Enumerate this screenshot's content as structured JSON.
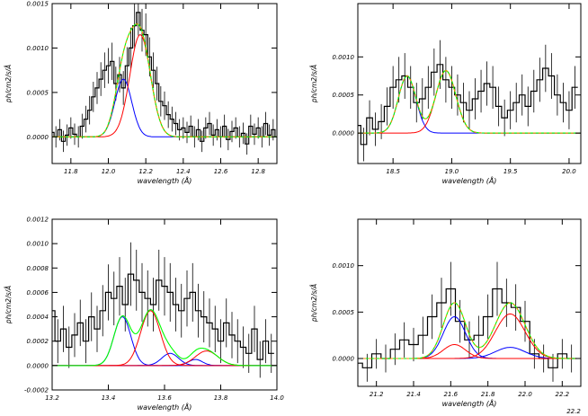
{
  "chart_data": [
    {
      "type": "line",
      "xlabel": "wavelength (Å)",
      "ylabel": "ph/cm2/s/Å",
      "xlim": [
        11.7,
        12.9
      ],
      "ylim": [
        -0.0003,
        0.0015
      ],
      "xticks": [
        11.8,
        12.0,
        12.2,
        12.4,
        12.6,
        12.8
      ],
      "xtick_labels": [
        "11.8",
        "12.0",
        "12.2",
        "12.4",
        "12.6",
        "12.8"
      ],
      "yticks": [
        0.0,
        0.0005,
        0.001,
        0.0015
      ],
      "ytick_labels": [
        "0.0000",
        "0.0005",
        "0.0010",
        "0.0015"
      ],
      "histogram": {
        "x": [
          11.7,
          11.72,
          11.74,
          11.76,
          11.78,
          11.8,
          11.82,
          11.84,
          11.86,
          11.88,
          11.9,
          11.92,
          11.94,
          11.96,
          11.98,
          12.0,
          12.02,
          12.04,
          12.06,
          12.08,
          12.1,
          12.12,
          12.14,
          12.16,
          12.18,
          12.2,
          12.22,
          12.24,
          12.26,
          12.28,
          12.3,
          12.32,
          12.34,
          12.36,
          12.38,
          12.4,
          12.42,
          12.44,
          12.46,
          12.48,
          12.5,
          12.52,
          12.54,
          12.56,
          12.58,
          12.6,
          12.62,
          12.64,
          12.66,
          12.68,
          12.7,
          12.72,
          12.74,
          12.76,
          12.78,
          12.8,
          12.82,
          12.84,
          12.86,
          12.88,
          12.9
        ],
        "y": [
          5e-05,
          0.0,
          8e-05,
          -5e-05,
          2e-05,
          0.0001,
          3e-05,
          0.0,
          0.00012,
          0.0002,
          0.0003,
          0.00045,
          0.00055,
          0.00065,
          0.00075,
          0.0008,
          0.00085,
          0.0006,
          0.0007,
          0.00055,
          0.0008,
          0.001,
          0.00125,
          0.0014,
          0.0012,
          0.00115,
          0.0009,
          0.00075,
          0.0006,
          0.0004,
          0.00035,
          0.00025,
          0.0002,
          0.00015,
          8e-05,
          0.0001,
          5e-05,
          0.00012,
          0.0,
          8e-05,
          -5e-05,
          0.0001,
          0.00015,
          2e-05,
          8e-05,
          0.0,
          0.00012,
          -3e-05,
          6e-05,
          0.0001,
          0.0,
          4e-05,
          -8e-05,
          0.00012,
          3e-05,
          0.0001,
          0.0,
          0.00015,
          2e-05,
          8e-05,
          0.0
        ],
        "err": [
          0.00012,
          0.00012,
          0.00012,
          0.00012,
          0.00012,
          0.00012,
          0.00012,
          0.00012,
          0.00014,
          0.00015,
          0.00016,
          0.00017,
          0.00018,
          0.00019,
          0.0002,
          0.0002,
          0.00021,
          0.00019,
          0.0002,
          0.00019,
          0.00021,
          0.00023,
          0.00025,
          0.00026,
          0.00024,
          0.00024,
          0.00022,
          0.0002,
          0.00019,
          0.00017,
          0.00016,
          0.00015,
          0.00014,
          0.00013,
          0.00012,
          0.00012,
          0.00012,
          0.00012,
          0.00012,
          0.00012,
          0.00012,
          0.00012,
          0.00013,
          0.00012,
          0.00012,
          0.00012,
          0.00013,
          0.00012,
          0.00012,
          0.00012,
          0.00012,
          0.00012,
          0.00012,
          0.00013,
          0.00012,
          0.00012,
          0.00012,
          0.00013,
          0.00012,
          0.00012,
          0.00012
        ]
      },
      "components": [
        {
          "name": "blue",
          "color": "#0000ff",
          "center": 12.08,
          "sigma": 0.045,
          "amp": 0.00065
        },
        {
          "name": "red",
          "color": "#ff0000",
          "center": 12.17,
          "sigma": 0.055,
          "amp": 0.00115
        }
      ],
      "total": {
        "name": "green",
        "color": "#00ff00",
        "includes_red_dash": true
      }
    },
    {
      "type": "line",
      "xlabel": "wavelength (Å)",
      "ylabel": "ph/cm2/s/Å",
      "xlim": [
        18.2,
        20.1
      ],
      "ylim": [
        -0.0004,
        0.0017
      ],
      "xticks": [
        18.5,
        19.0,
        19.5,
        20.0
      ],
      "xtick_labels": [
        "18.5",
        "19.0",
        "19.5",
        "20.0"
      ],
      "yticks": [
        0.0,
        0.0005,
        0.001
      ],
      "ytick_labels": [
        "0.0000",
        "0.0005",
        "0.0010"
      ],
      "histogram": {
        "x": [
          18.2,
          18.25,
          18.3,
          18.35,
          18.4,
          18.45,
          18.5,
          18.55,
          18.6,
          18.65,
          18.7,
          18.75,
          18.8,
          18.85,
          18.9,
          18.95,
          19.0,
          19.05,
          19.1,
          19.15,
          19.2,
          19.25,
          19.3,
          19.35,
          19.4,
          19.45,
          19.5,
          19.55,
          19.6,
          19.65,
          19.7,
          19.75,
          19.8,
          19.85,
          19.9,
          19.95,
          20.0,
          20.05
        ],
        "y": [
          0.0001,
          -0.00015,
          0.0002,
          5e-05,
          0.00015,
          0.00035,
          0.0006,
          0.0007,
          0.00075,
          0.0006,
          0.0004,
          0.00045,
          0.0006,
          0.0008,
          0.0009,
          0.0007,
          0.0006,
          0.0005,
          0.0004,
          0.0003,
          0.00045,
          0.00055,
          0.00065,
          0.0006,
          0.00035,
          0.0002,
          0.0003,
          0.0004,
          0.0005,
          0.00035,
          0.00055,
          0.0007,
          0.00085,
          0.00075,
          0.0005,
          0.0004,
          0.0003,
          0.0006
        ],
        "err": [
          0.00022,
          0.00022,
          0.00023,
          0.00022,
          0.00023,
          0.00025,
          0.00028,
          0.0003,
          0.0003,
          0.00028,
          0.00026,
          0.00027,
          0.00028,
          0.00031,
          0.00032,
          0.0003,
          0.00028,
          0.00027,
          0.00026,
          0.00025,
          0.00027,
          0.00028,
          0.00029,
          0.00028,
          0.00026,
          0.00024,
          0.00025,
          0.00026,
          0.00027,
          0.00026,
          0.00028,
          0.00029,
          0.00031,
          0.0003,
          0.00027,
          0.00026,
          0.00025,
          0.00028
        ]
      },
      "components": [
        {
          "name": "blue",
          "color": "#0000ff",
          "center": 18.62,
          "sigma": 0.075,
          "amp": 0.00075
        },
        {
          "name": "red",
          "color": "#ff0000",
          "center": 18.95,
          "sigma": 0.085,
          "amp": 0.00082
        }
      ],
      "total": {
        "name": "green",
        "color": "#00ff00",
        "includes_red_dash": true
      }
    },
    {
      "type": "line",
      "xlabel": "wavelength (Å)",
      "ylabel": "ph/cm2/s/Å",
      "xlim": [
        13.2,
        14.0
      ],
      "ylim": [
        -0.0002,
        0.0012
      ],
      "xticks": [
        13.2,
        13.4,
        13.6,
        13.8,
        14.0
      ],
      "xtick_labels": [
        "13.2",
        "13.4",
        "13.6",
        "13.8",
        "14.0"
      ],
      "yticks": [
        -0.0002,
        0.0,
        0.0002,
        0.0004,
        0.0006,
        0.0008,
        0.001,
        0.0012
      ],
      "ytick_labels": [
        "-0.0002",
        "0.0000",
        "0.0002",
        "0.0004",
        "0.0006",
        "0.0008",
        "0.0010",
        "0.0012"
      ],
      "histogram": {
        "x": [
          13.2,
          13.22,
          13.24,
          13.26,
          13.28,
          13.3,
          13.32,
          13.34,
          13.36,
          13.38,
          13.4,
          13.42,
          13.44,
          13.46,
          13.48,
          13.5,
          13.52,
          13.54,
          13.56,
          13.58,
          13.6,
          13.62,
          13.64,
          13.66,
          13.68,
          13.7,
          13.72,
          13.74,
          13.76,
          13.78,
          13.8,
          13.82,
          13.84,
          13.86,
          13.88,
          13.9,
          13.92,
          13.94,
          13.96,
          13.98
        ],
        "y": [
          0.00045,
          0.0002,
          0.0003,
          0.00015,
          0.00025,
          0.00035,
          0.0002,
          0.0004,
          0.0003,
          0.00045,
          0.0006,
          0.00055,
          0.00065,
          0.0005,
          0.00075,
          0.0007,
          0.0006,
          0.00055,
          0.0005,
          0.0007,
          0.00065,
          0.0006,
          0.0005,
          0.00045,
          0.00055,
          0.0006,
          0.00045,
          0.0004,
          0.00035,
          0.0003,
          0.0002,
          0.00035,
          0.00025,
          0.0002,
          0.00015,
          0.0001,
          0.0003,
          5e-05,
          0.0002,
          0.0001
        ],
        "err": [
          0.0002,
          0.00018,
          0.00019,
          0.00017,
          0.00018,
          0.00019,
          0.00018,
          0.0002,
          0.00019,
          0.00021,
          0.00023,
          0.00022,
          0.00024,
          0.00022,
          0.00026,
          0.00025,
          0.00024,
          0.00023,
          0.00022,
          0.00025,
          0.00024,
          0.00024,
          0.00022,
          0.00022,
          0.00023,
          0.00024,
          0.00022,
          0.00021,
          0.0002,
          0.00019,
          0.00018,
          0.0002,
          0.00019,
          0.00018,
          0.00017,
          0.00016,
          0.00019,
          0.00015,
          0.00018,
          0.00016
        ]
      },
      "components": [
        {
          "name": "blue-1",
          "color": "#0000ff",
          "center": 13.45,
          "sigma": 0.03,
          "amp": 0.0004
        },
        {
          "name": "blue-2",
          "color": "#0000ff",
          "center": 13.62,
          "sigma": 0.03,
          "amp": 0.0001
        },
        {
          "name": "blue-3",
          "color": "#0000ff",
          "center": 13.71,
          "sigma": 0.025,
          "amp": 5e-05
        },
        {
          "name": "red-1",
          "color": "#ff0000",
          "center": 13.55,
          "sigma": 0.035,
          "amp": 0.00045
        },
        {
          "name": "red-2",
          "color": "#ff0000",
          "center": 13.75,
          "sigma": 0.04,
          "amp": 0.00012
        }
      ],
      "total": {
        "name": "green",
        "color": "#00ff00",
        "includes_red_dash": false
      }
    },
    {
      "type": "line",
      "xlabel": "wavelength (Å)",
      "ylabel": "ph/cm2/s/Å",
      "xlim": [
        21.1,
        22.3
      ],
      "ylim": [
        -0.0003,
        0.0015
      ],
      "xticks": [
        21.2,
        21.4,
        21.6,
        21.8,
        22.0,
        22.2
      ],
      "xtick_labels": [
        "21.2",
        "21.4",
        "21.6",
        "21.8",
        "22.0",
        "22.2"
      ],
      "yticks": [
        0.0,
        0.0005,
        0.001
      ],
      "ytick_labels": [
        "0.0000",
        "0.0005",
        "0.0010"
      ],
      "extra_label": "22.2",
      "histogram": {
        "x": [
          21.1,
          21.15,
          21.2,
          21.25,
          21.3,
          21.35,
          21.4,
          21.45,
          21.5,
          21.55,
          21.6,
          21.65,
          21.7,
          21.75,
          21.8,
          21.85,
          21.9,
          21.95,
          22.0,
          22.05,
          22.1,
          22.15,
          22.2,
          22.25
        ],
        "y": [
          -5e-05,
          -0.0001,
          5e-05,
          0.0,
          0.0001,
          0.0002,
          0.00015,
          0.00025,
          0.00045,
          0.0006,
          0.00075,
          0.0004,
          0.0002,
          0.00025,
          0.00045,
          0.00075,
          0.0006,
          0.00055,
          0.0004,
          5e-05,
          0.0,
          -0.0001,
          5e-05,
          0.0
        ],
        "err": [
          0.00015,
          0.00015,
          0.00016,
          0.00015,
          0.00017,
          0.00019,
          0.00018,
          0.0002,
          0.00024,
          0.00027,
          0.00029,
          0.00023,
          0.0002,
          0.00021,
          0.00024,
          0.00029,
          0.00026,
          0.00025,
          0.00022,
          0.00016,
          0.00015,
          0.00015,
          0.00016,
          0.00015
        ]
      },
      "components": [
        {
          "name": "blue",
          "color": "#0000ff",
          "center": 21.62,
          "sigma": 0.06,
          "amp": 0.00045
        },
        {
          "name": "blue-2",
          "color": "#0000ff",
          "center": 21.92,
          "sigma": 0.08,
          "amp": 0.00012
        },
        {
          "name": "red",
          "color": "#ff0000",
          "center": 21.92,
          "sigma": 0.08,
          "amp": 0.00048
        },
        {
          "name": "red-2",
          "color": "#ff0000",
          "center": 21.62,
          "sigma": 0.06,
          "amp": 0.00015
        }
      ],
      "total": {
        "name": "green",
        "color": "#00ff00",
        "includes_red_dash": true
      }
    }
  ]
}
